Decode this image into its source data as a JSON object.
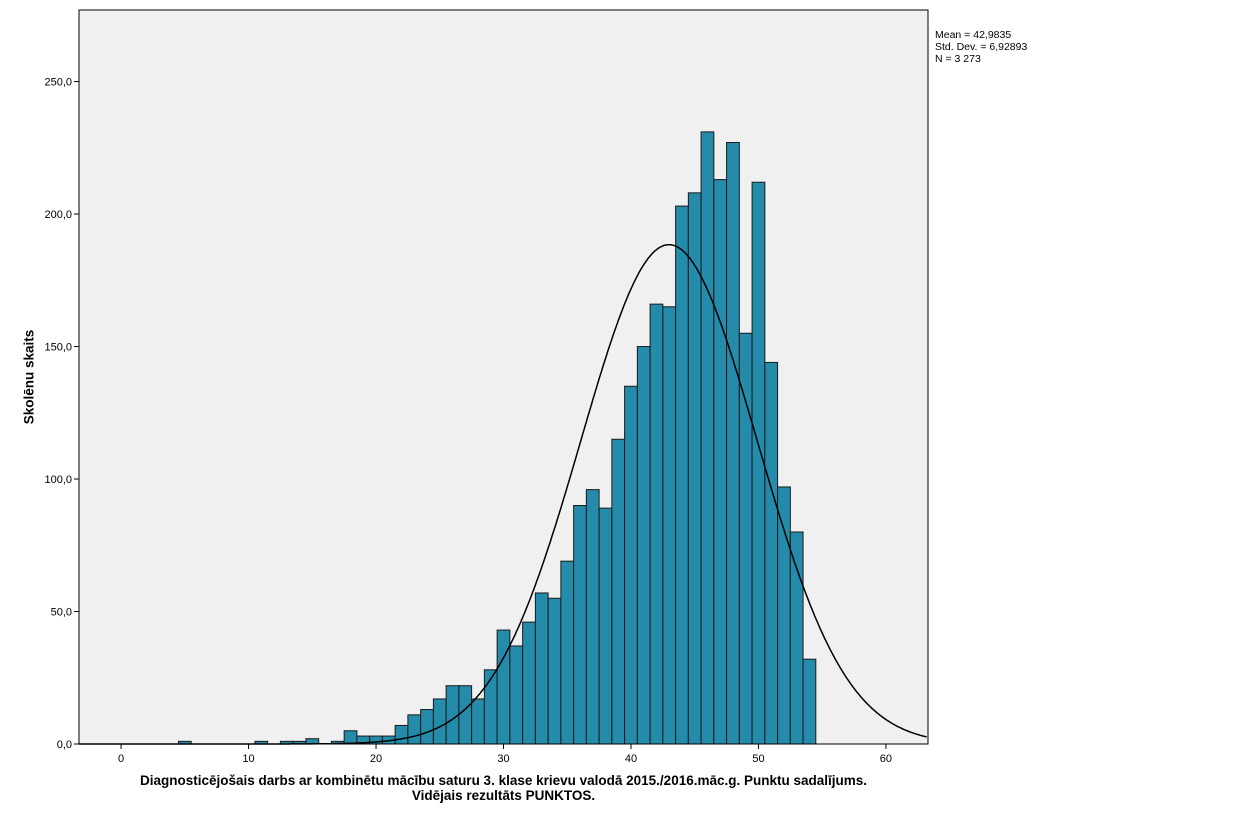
{
  "chart_data": {
    "type": "bar",
    "subtype": "histogram",
    "title": "",
    "xlabel_line1": "Diagnosticējošais darbs ar kombinētu mācību saturu 3. klase krievu valodā 2015./2016.māc.g. Punktu sadalījums.",
    "xlabel_line2": "Vidējais rezultāts PUNKTOS.",
    "ylabel": "Skolēnu skaits",
    "xlim": [
      -3.3,
      63.3
    ],
    "ylim": [
      0,
      277
    ],
    "xticks": [
      0,
      10,
      20,
      30,
      40,
      50,
      60
    ],
    "xtick_labels": [
      "0",
      "10",
      "20",
      "30",
      "40",
      "50",
      "60"
    ],
    "yticks": [
      0,
      50,
      100,
      150,
      200,
      250
    ],
    "ytick_labels": [
      "0,0",
      "50,0",
      "100,0",
      "150,0",
      "200,0",
      "250,0"
    ],
    "bin_width": 1,
    "bins": [
      5,
      11,
      13,
      14,
      15,
      17,
      18,
      19,
      20,
      21,
      22,
      23,
      24,
      25,
      26,
      27,
      28,
      29,
      30,
      31,
      32,
      33,
      34,
      35,
      36,
      37,
      38,
      39,
      40,
      41,
      42,
      43,
      44,
      45,
      46,
      47,
      48,
      49,
      50,
      51,
      52,
      53,
      54
    ],
    "values": [
      1,
      1,
      1,
      1,
      2,
      1,
      5,
      3,
      3,
      3,
      7,
      11,
      13,
      17,
      22,
      22,
      17,
      28,
      43,
      37,
      46,
      57,
      55,
      69,
      90,
      96,
      89,
      115,
      135,
      150,
      166,
      165,
      203,
      208,
      231,
      213,
      227,
      155,
      212,
      144,
      97,
      80,
      32
    ],
    "normal_curve": {
      "mean": 42.9835,
      "sd": 6.92893,
      "n": 3273
    },
    "stats": {
      "mean": "Mean = 42,9835",
      "sd": "Std. Dev. = 6,92893",
      "n": "N = 3 273"
    },
    "colors": {
      "bar": "#248bab",
      "plot_bg": "#f0f0f0",
      "curve": "#000000"
    },
    "grid": false,
    "legend": "none"
  }
}
